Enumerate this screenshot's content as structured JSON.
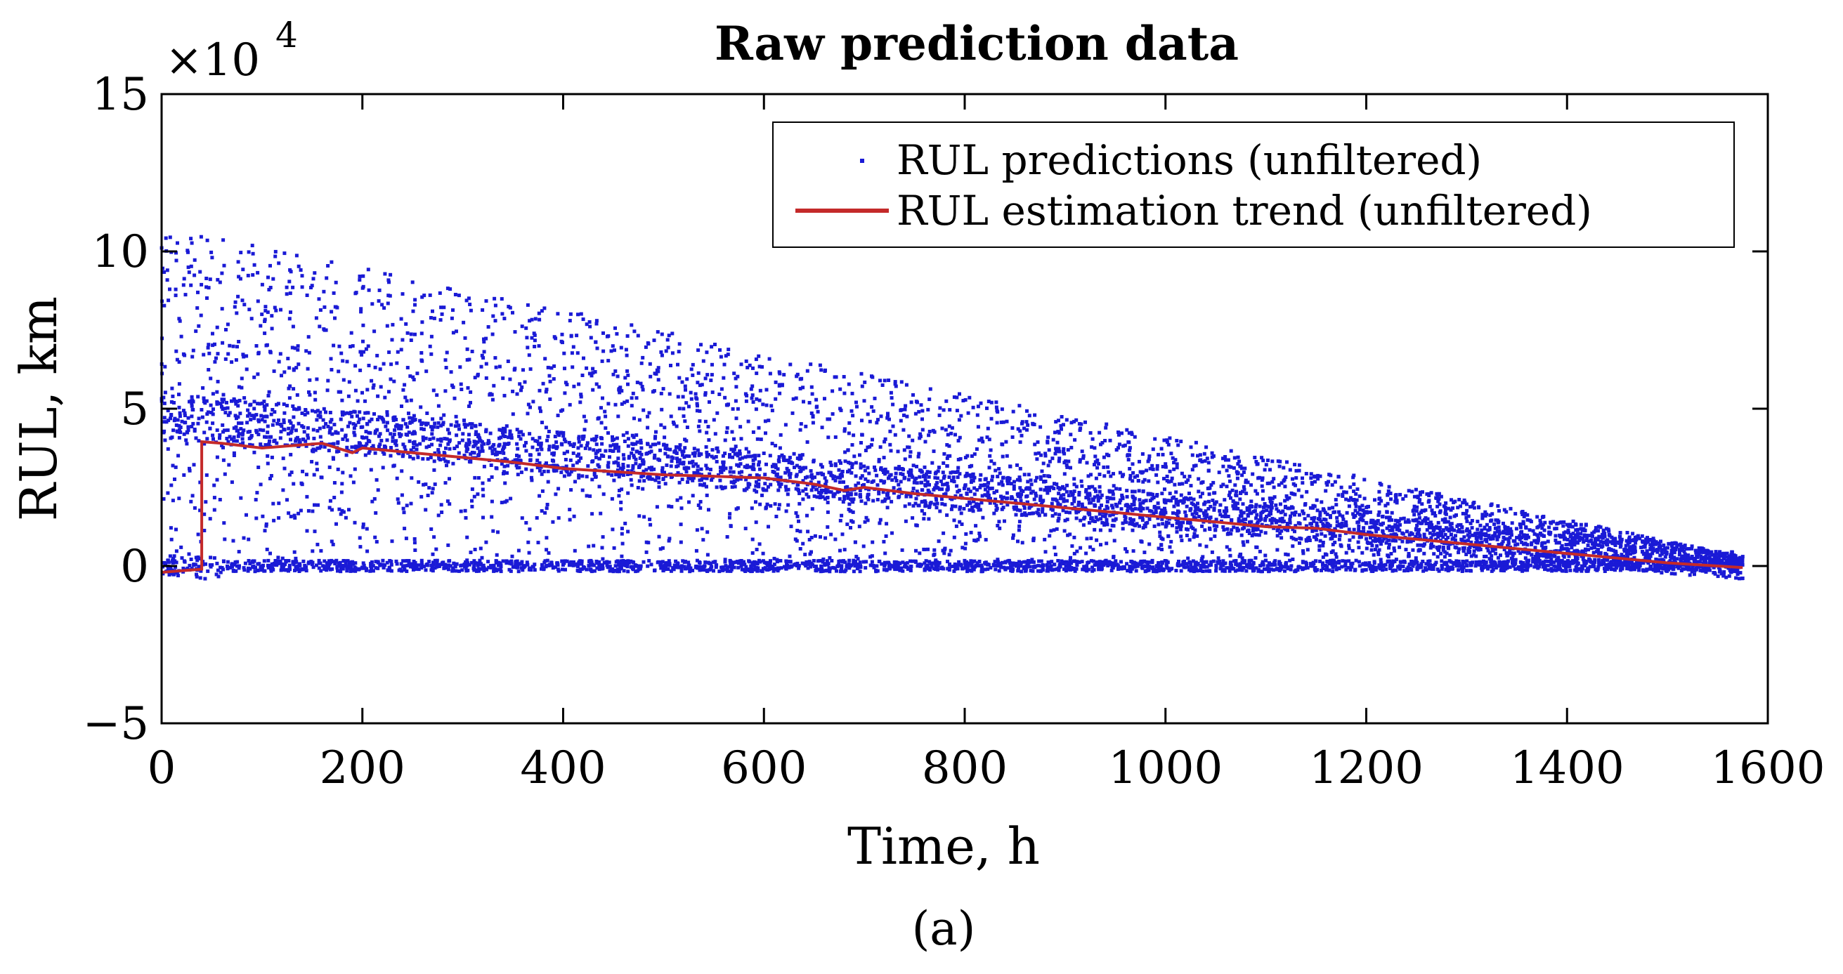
{
  "chart_data": {
    "type": "scatter",
    "title": "Raw prediction data",
    "xlabel": "Time, h",
    "ylabel": "RUL, km",
    "xlim": [
      0,
      1600
    ],
    "ylim": [
      -5,
      15
    ],
    "y_multiplier": "×10",
    "y_multiplier_exponent": "4",
    "x_ticks": [
      "0",
      "200",
      "400",
      "600",
      "800",
      "1000",
      "1200",
      "1400",
      "1600"
    ],
    "y_ticks": [
      "−5",
      "0",
      "5",
      "10",
      "15"
    ],
    "x_tick_values": [
      0,
      200,
      400,
      600,
      800,
      1000,
      1200,
      1400,
      1600
    ],
    "y_tick_values": [
      -5,
      0,
      5,
      10,
      15
    ],
    "grid": false,
    "legend_position": "top-right",
    "caption": "(a)",
    "series": [
      {
        "name": "RUL predictions (unfiltered)",
        "kind": "scatter",
        "color": "#1a1ad6",
        "description_bands": {
          "time_range": [
            0,
            1575
          ],
          "upper_envelope_start": 10.5,
          "dense_band_start": 4.8,
          "zero_band": 0.0
        }
      },
      {
        "name": "RUL estimation trend (unfiltered)",
        "kind": "line",
        "color": "#c42a2a",
        "x": [
          0,
          40,
          40,
          60,
          100,
          140,
          160,
          190,
          200,
          250,
          300,
          350,
          400,
          450,
          500,
          550,
          600,
          650,
          680,
          700,
          750,
          800,
          850,
          900,
          950,
          1000,
          1050,
          1100,
          1150,
          1200,
          1250,
          1300,
          1350,
          1400,
          1450,
          1500,
          1550,
          1575
        ],
        "y": [
          -0.2,
          -0.1,
          3.95,
          3.9,
          3.75,
          3.85,
          3.9,
          3.6,
          3.75,
          3.6,
          3.45,
          3.3,
          3.1,
          3.0,
          2.9,
          2.85,
          2.8,
          2.6,
          2.4,
          2.5,
          2.3,
          2.15,
          2.0,
          1.85,
          1.7,
          1.55,
          1.4,
          1.25,
          1.2,
          1.0,
          0.85,
          0.7,
          0.55,
          0.4,
          0.25,
          0.1,
          0.0,
          -0.05
        ]
      }
    ]
  }
}
